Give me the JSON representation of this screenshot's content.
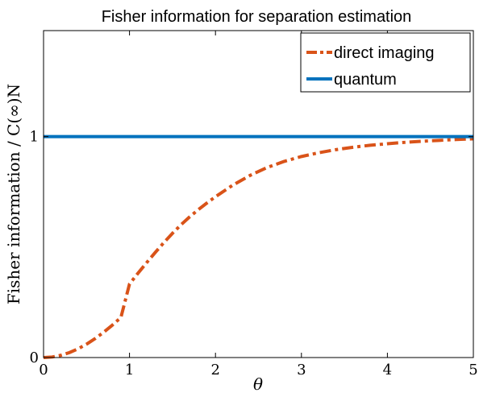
{
  "chart_data": {
    "type": "line",
    "title": "Fisher information for separation estimation",
    "xlabel": "θ",
    "ylabel": "Fisher information / C(∞)N",
    "xlim": [
      0,
      5
    ],
    "ylim": [
      0,
      1.48
    ],
    "xticks": [
      0,
      1,
      2,
      3,
      4,
      5
    ],
    "xtick_labels": [
      "0",
      "1",
      "2",
      "3",
      "4",
      "5"
    ],
    "yticks": [
      0,
      1
    ],
    "ytick_labels": [
      "0",
      "1"
    ],
    "grid": false,
    "legend_position": "top-right",
    "series": [
      {
        "name": "direct imaging",
        "color": "#d95319",
        "style": "dash-dot",
        "x": [
          0,
          0.1,
          0.2,
          0.3,
          0.4,
          0.5,
          0.6,
          0.7,
          0.8,
          0.9,
          1.0,
          1.1,
          1.2,
          1.3,
          1.4,
          1.5,
          1.6,
          1.7,
          1.8,
          1.9,
          2.0,
          2.2,
          2.4,
          2.6,
          2.8,
          3.0,
          3.2,
          3.4,
          3.6,
          3.8,
          4.0,
          4.2,
          4.4,
          4.6,
          4.8,
          5.0
        ],
        "y": [
          0,
          0.0025,
          0.01,
          0.0223,
          0.0392,
          0.0605,
          0.0858,
          0.1147,
          0.1466,
          0.1813,
          0.333,
          0.3823,
          0.4298,
          0.476,
          0.5205,
          0.5624,
          0.6013,
          0.6369,
          0.6695,
          0.6995,
          0.728,
          0.78,
          0.824,
          0.86,
          0.888,
          0.91,
          0.927,
          0.941,
          0.952,
          0.961,
          0.968,
          0.974,
          0.979,
          0.983,
          0.987,
          0.99
        ]
      },
      {
        "name": "quantum",
        "color": "#0072bd",
        "style": "solid",
        "x": [
          0,
          5
        ],
        "y": [
          1,
          1
        ]
      }
    ]
  }
}
